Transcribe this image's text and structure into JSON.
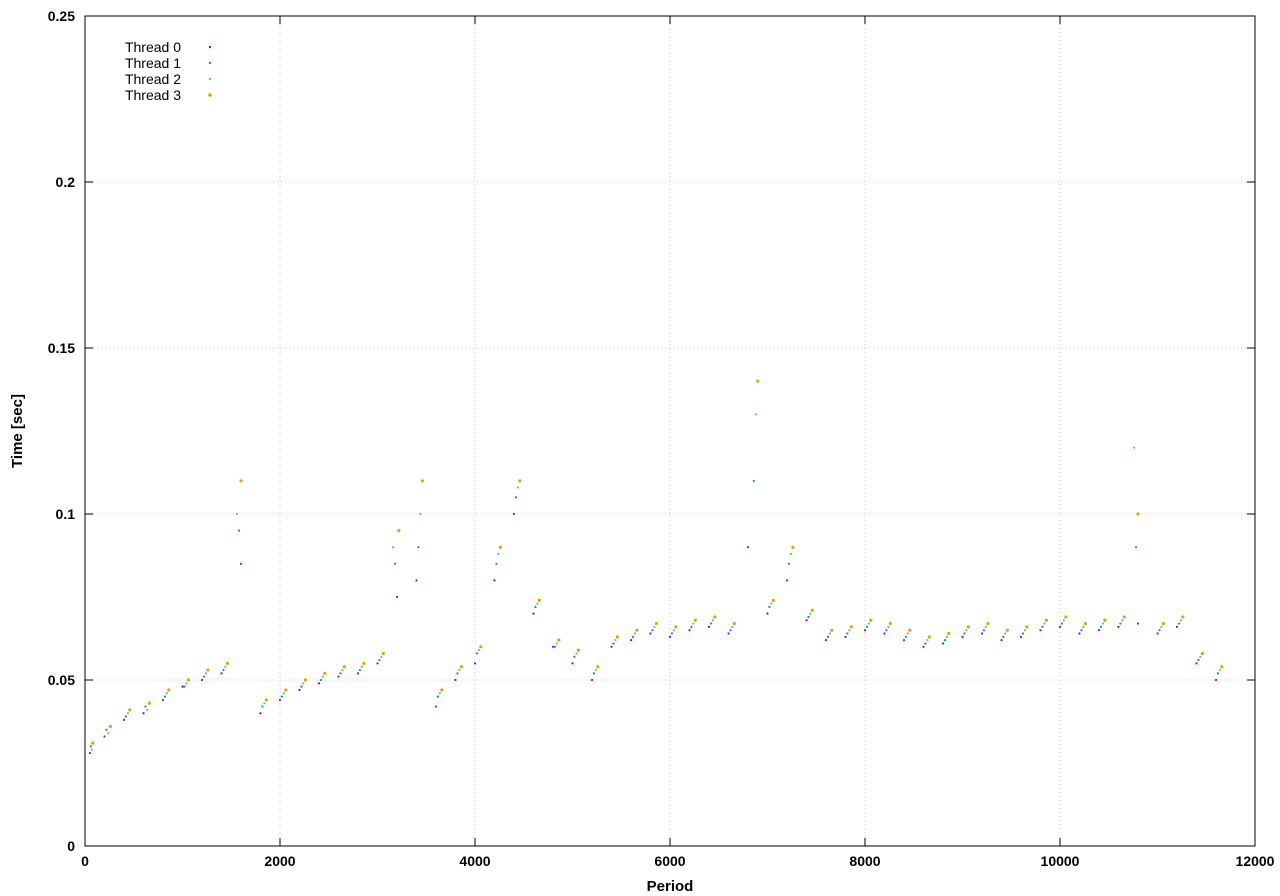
{
  "chart_data": {
    "type": "scatter",
    "title": "",
    "xlabel": "Period",
    "ylabel": "Time [sec]",
    "xlim": [
      0,
      12000
    ],
    "ylim": [
      0,
      0.25
    ],
    "x_ticks": [
      0,
      2000,
      4000,
      6000,
      8000,
      10000,
      12000
    ],
    "y_ticks": [
      0,
      0.05,
      0.1,
      0.15,
      0.2,
      0.25
    ],
    "x_tick_labels": [
      "0",
      "2000",
      "4000",
      "6000",
      "8000",
      "10000",
      "12000"
    ],
    "y_tick_labels": [
      "0",
      "0.05",
      "0.1",
      "0.15",
      "0.2",
      "0.25"
    ],
    "grid": true,
    "legend_position": "top-left",
    "series": [
      {
        "name": "Thread 0",
        "color": "#9400d3",
        "x": [
          50,
          200,
          400,
          600,
          800,
          1000,
          1200,
          1400,
          1600,
          1800,
          2000,
          2200,
          2400,
          2600,
          2800,
          3000,
          3200,
          3400,
          3600,
          3800,
          4000,
          4200,
          4400,
          4600,
          4800,
          5000,
          5200,
          5400,
          5600,
          5800,
          6000,
          6200,
          6400,
          6600,
          6800,
          7000,
          7200,
          7400,
          7600,
          7800,
          8000,
          8200,
          8400,
          8600,
          8800,
          9000,
          9200,
          9400,
          9600,
          9800,
          10000,
          10200,
          10400,
          10600,
          10800,
          11000,
          11200,
          11400,
          11600
        ],
        "y": [
          0.028,
          0.033,
          0.038,
          0.04,
          0.044,
          0.048,
          0.05,
          0.052,
          0.085,
          0.04,
          0.044,
          0.047,
          0.049,
          0.051,
          0.052,
          0.055,
          0.075,
          0.08,
          0.042,
          0.05,
          0.055,
          0.08,
          0.1,
          0.07,
          0.06,
          0.055,
          0.05,
          0.06,
          0.062,
          0.064,
          0.063,
          0.065,
          0.066,
          0.064,
          0.09,
          0.07,
          0.08,
          0.068,
          0.062,
          0.063,
          0.065,
          0.064,
          0.062,
          0.06,
          0.061,
          0.063,
          0.064,
          0.062,
          0.063,
          0.065,
          0.066,
          0.064,
          0.065,
          0.066,
          0.067,
          0.064,
          0.066,
          0.055,
          0.05
        ]
      },
      {
        "name": "Thread 1",
        "color": "#009e73",
        "x": [
          60,
          220,
          420,
          620,
          820,
          1020,
          1220,
          1420,
          1580,
          1820,
          2020,
          2220,
          2420,
          2620,
          2820,
          3020,
          3180,
          3420,
          3620,
          3820,
          4020,
          4220,
          4420,
          4620,
          4820,
          5020,
          5220,
          5420,
          5620,
          5820,
          6020,
          6220,
          6420,
          6620,
          6860,
          7020,
          7220,
          7420,
          7620,
          7820,
          8020,
          8220,
          8420,
          8620,
          8820,
          9020,
          9220,
          9420,
          9620,
          9820,
          10020,
          10220,
          10420,
          10620,
          10780,
          11020,
          11220,
          11420,
          11620
        ],
        "y": [
          0.03,
          0.035,
          0.039,
          0.042,
          0.045,
          0.048,
          0.051,
          0.053,
          0.095,
          0.042,
          0.045,
          0.048,
          0.05,
          0.052,
          0.053,
          0.056,
          0.085,
          0.09,
          0.045,
          0.052,
          0.058,
          0.085,
          0.105,
          0.072,
          0.06,
          0.057,
          0.052,
          0.061,
          0.063,
          0.065,
          0.064,
          0.066,
          0.067,
          0.065,
          0.11,
          0.072,
          0.085,
          0.069,
          0.063,
          0.064,
          0.066,
          0.065,
          0.063,
          0.061,
          0.062,
          0.064,
          0.065,
          0.063,
          0.064,
          0.066,
          0.067,
          0.065,
          0.066,
          0.067,
          0.09,
          0.065,
          0.067,
          0.056,
          0.052
        ]
      },
      {
        "name": "Thread 2",
        "color": "#56b4e9",
        "x": [
          70,
          240,
          440,
          640,
          840,
          1040,
          1240,
          1440,
          1560,
          1840,
          2040,
          2240,
          2440,
          2640,
          2840,
          3040,
          3160,
          3440,
          3640,
          3840,
          4040,
          4240,
          4440,
          4640,
          4840,
          5040,
          5240,
          5440,
          5640,
          5840,
          6040,
          6240,
          6440,
          6640,
          6880,
          7040,
          7240,
          7440,
          7640,
          7840,
          8040,
          8240,
          8440,
          8640,
          8840,
          9040,
          9240,
          9440,
          9640,
          9840,
          10040,
          10240,
          10440,
          10640,
          10760,
          11040,
          11240,
          11440,
          11640
        ],
        "y": [
          0.029,
          0.034,
          0.04,
          0.041,
          0.046,
          0.049,
          0.052,
          0.054,
          0.1,
          0.043,
          0.046,
          0.049,
          0.051,
          0.053,
          0.054,
          0.057,
          0.09,
          0.1,
          0.046,
          0.053,
          0.059,
          0.088,
          0.108,
          0.073,
          0.061,
          0.058,
          0.053,
          0.062,
          0.064,
          0.066,
          0.065,
          0.067,
          0.068,
          0.066,
          0.13,
          0.073,
          0.088,
          0.07,
          0.064,
          0.065,
          0.067,
          0.066,
          0.064,
          0.062,
          0.063,
          0.065,
          0.066,
          0.064,
          0.065,
          0.067,
          0.068,
          0.066,
          0.067,
          0.068,
          0.12,
          0.066,
          0.068,
          0.057,
          0.053
        ]
      },
      {
        "name": "Thread 3",
        "color": "#e69f00",
        "x": [
          80,
          260,
          460,
          660,
          860,
          1060,
          1260,
          1460,
          1600,
          1860,
          2060,
          2260,
          2460,
          2660,
          2860,
          3060,
          3220,
          3460,
          3660,
          3860,
          4060,
          4260,
          4460,
          4660,
          4860,
          5060,
          5260,
          5460,
          5660,
          5860,
          6060,
          6260,
          6460,
          6660,
          6900,
          7060,
          7260,
          7460,
          7660,
          7860,
          8060,
          8260,
          8460,
          8660,
          8860,
          9060,
          9260,
          9460,
          9660,
          9860,
          10060,
          10260,
          10460,
          10660,
          10800,
          11060,
          11260,
          11460,
          11660
        ],
        "y": [
          0.031,
          0.036,
          0.041,
          0.043,
          0.047,
          0.05,
          0.053,
          0.055,
          0.11,
          0.044,
          0.047,
          0.05,
          0.052,
          0.054,
          0.055,
          0.058,
          0.095,
          0.11,
          0.047,
          0.054,
          0.06,
          0.09,
          0.11,
          0.074,
          0.062,
          0.059,
          0.054,
          0.063,
          0.065,
          0.067,
          0.066,
          0.068,
          0.069,
          0.067,
          0.14,
          0.074,
          0.09,
          0.071,
          0.065,
          0.066,
          0.068,
          0.067,
          0.065,
          0.063,
          0.064,
          0.066,
          0.067,
          0.065,
          0.066,
          0.068,
          0.069,
          0.067,
          0.068,
          0.069,
          0.1,
          0.067,
          0.069,
          0.058,
          0.054
        ]
      }
    ]
  }
}
